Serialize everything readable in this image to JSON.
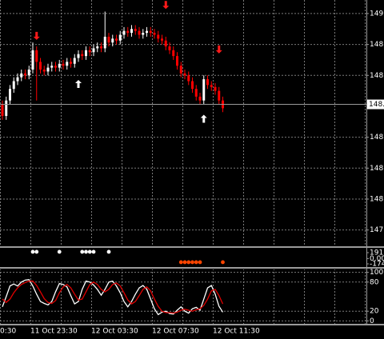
{
  "chart_data": [
    {
      "type": "candlestick",
      "categories": [
        "0:30",
        null,
        null,
        null,
        null,
        null,
        null,
        null,
        "11 Oct 23:30",
        null,
        null,
        null,
        null,
        null,
        null,
        null,
        null,
        null,
        null,
        null,
        null,
        null,
        null,
        null,
        "12 Oct 03:30",
        null,
        null,
        null,
        null,
        null,
        null,
        null,
        null,
        null,
        null,
        null,
        null,
        null,
        null,
        null,
        "12 Oct 07:30",
        null,
        null,
        null,
        null,
        null,
        null,
        null,
        null,
        null,
        null,
        null,
        null,
        null,
        null,
        null,
        "12 Oct 11:30",
        null,
        null
      ],
      "open": [
        148.58,
        148.52,
        148.6,
        148.66,
        148.7,
        148.72,
        148.74,
        148.73,
        148.76,
        148.86,
        148.8,
        148.76,
        148.75,
        148.77,
        148.78,
        148.77,
        148.79,
        148.78,
        148.8,
        148.79,
        148.82,
        148.84,
        148.83,
        148.86,
        148.85,
        148.87,
        148.88,
        148.87,
        148.93,
        148.9,
        148.92,
        148.91,
        148.94,
        148.96,
        148.95,
        148.97,
        148.96,
        148.94,
        148.95,
        148.96,
        148.95,
        148.94,
        148.92,
        148.91,
        148.88,
        148.86,
        148.83,
        148.78,
        148.74,
        148.73,
        148.7,
        148.66,
        148.62,
        148.6,
        148.71,
        148.68,
        148.67,
        148.65,
        148.6
      ],
      "high": [
        148.6,
        148.62,
        148.68,
        148.72,
        148.74,
        148.76,
        148.76,
        148.78,
        148.9,
        148.88,
        148.82,
        148.78,
        148.79,
        148.8,
        148.8,
        148.81,
        148.81,
        148.82,
        148.82,
        148.84,
        148.86,
        148.86,
        148.88,
        148.88,
        148.89,
        148.9,
        148.9,
        149.06,
        148.95,
        148.94,
        148.94,
        148.96,
        148.98,
        148.98,
        148.99,
        148.99,
        148.98,
        148.97,
        148.98,
        148.98,
        148.97,
        148.96,
        148.94,
        148.93,
        148.9,
        148.88,
        148.85,
        148.8,
        148.76,
        148.75,
        148.72,
        148.68,
        148.64,
        148.73,
        148.73,
        148.7,
        148.69,
        148.67,
        148.62
      ],
      "low": [
        148.5,
        148.5,
        148.58,
        148.64,
        148.68,
        148.7,
        148.71,
        148.71,
        148.74,
        148.6,
        148.74,
        148.73,
        148.73,
        148.75,
        148.75,
        148.75,
        148.76,
        148.76,
        148.77,
        148.77,
        148.8,
        148.81,
        148.81,
        148.83,
        148.83,
        148.85,
        148.85,
        148.85,
        148.88,
        148.88,
        148.89,
        148.89,
        148.92,
        148.93,
        148.93,
        148.94,
        148.92,
        148.92,
        148.93,
        148.93,
        148.92,
        148.9,
        148.89,
        148.86,
        148.84,
        148.81,
        148.76,
        148.72,
        148.71,
        148.68,
        148.64,
        148.6,
        148.58,
        148.58,
        148.66,
        148.65,
        148.63,
        148.58,
        148.54
      ],
      "close": [
        148.52,
        148.6,
        148.66,
        148.7,
        148.72,
        148.74,
        148.73,
        148.76,
        148.86,
        148.8,
        148.76,
        148.75,
        148.77,
        148.78,
        148.77,
        148.79,
        148.78,
        148.8,
        148.79,
        148.82,
        148.84,
        148.83,
        148.86,
        148.85,
        148.87,
        148.88,
        148.87,
        148.93,
        148.9,
        148.92,
        148.91,
        148.94,
        148.96,
        148.95,
        148.97,
        148.96,
        148.94,
        148.95,
        148.96,
        148.95,
        148.94,
        148.92,
        148.91,
        148.88,
        148.86,
        148.83,
        148.78,
        148.74,
        148.73,
        148.7,
        148.66,
        148.62,
        148.6,
        148.71,
        148.68,
        148.67,
        148.65,
        148.6,
        148.56
      ],
      "up_color": "#ffffff",
      "down_color": "#ff0000",
      "ylim": [
        147.85,
        149.12
      ],
      "yticks": [
        {
          "value": 149.05,
          "label": "149."
        },
        {
          "value": 148.89,
          "label": "148."
        },
        {
          "value": 148.73,
          "label": "148."
        },
        {
          "value": 148.41,
          "label": "148."
        },
        {
          "value": 148.25,
          "label": "148."
        },
        {
          "value": 148.09,
          "label": "148."
        },
        {
          "value": 147.93,
          "label": "147."
        }
      ],
      "grid": true,
      "last_price": {
        "value": 148.58,
        "label": "148."
      },
      "signals": {
        "down": {
          "color": "#ff1a1a",
          "x": [
            9,
            43,
            57
          ],
          "values": [
            148.93,
            149.09,
            148.86
          ]
        },
        "up": {
          "color": "#ffffff",
          "x": [
            20,
            53
          ],
          "values": [
            148.69,
            148.51
          ]
        }
      }
    },
    {
      "type": "dot",
      "ylim": [
        -278,
        348
      ],
      "yticks": [
        191.5,
        {
          "value": 0,
          "label": "0.00"
        },
        {
          "value": -174.2,
          "label": "-174."
        }
      ],
      "series": [
        {
          "color": "#ffffff",
          "x": [
            8,
            9,
            15,
            21,
            22,
            23,
            24,
            28
          ],
          "values": [
            219,
            219,
            219,
            219,
            219,
            219,
            219,
            219
          ]
        },
        {
          "color": "#ff4500",
          "x": [
            47,
            48,
            49,
            50,
            51,
            52,
            58
          ],
          "values": [
            -120,
            -120,
            -120,
            -120,
            -120,
            -120,
            -120
          ]
        }
      ]
    },
    {
      "type": "line",
      "ylim": [
        -6,
        106
      ],
      "yticks": [
        100,
        80,
        20,
        0
      ],
      "grid": true,
      "series": [
        {
          "color": "#ffffff",
          "values": [
            29,
            50,
            72,
            76,
            72,
            80,
            84,
            85,
            72,
            55,
            40,
            36,
            33,
            40,
            60,
            77,
            75,
            70,
            52,
            35,
            40,
            65,
            82,
            80,
            74,
            65,
            53,
            65,
            80,
            82,
            72,
            58,
            40,
            29,
            40,
            55,
            68,
            73,
            65,
            45,
            25,
            13,
            18,
            20,
            15,
            14,
            22,
            29,
            20,
            16,
            25,
            28,
            22,
            45,
            68,
            73,
            55,
            30,
            18
          ]
        },
        {
          "color": "#e00000",
          "values": [
            45,
            38,
            45,
            58,
            68,
            75,
            79,
            82,
            82,
            73,
            60,
            46,
            38,
            36,
            42,
            58,
            70,
            75,
            68,
            55,
            43,
            45,
            60,
            75,
            80,
            75,
            65,
            60,
            65,
            75,
            78,
            72,
            58,
            43,
            35,
            40,
            52,
            65,
            70,
            62,
            45,
            30,
            20,
            17,
            17,
            16,
            18,
            22,
            24,
            22,
            20,
            23,
            25,
            32,
            45,
            62,
            65,
            52,
            35
          ]
        }
      ]
    }
  ]
}
